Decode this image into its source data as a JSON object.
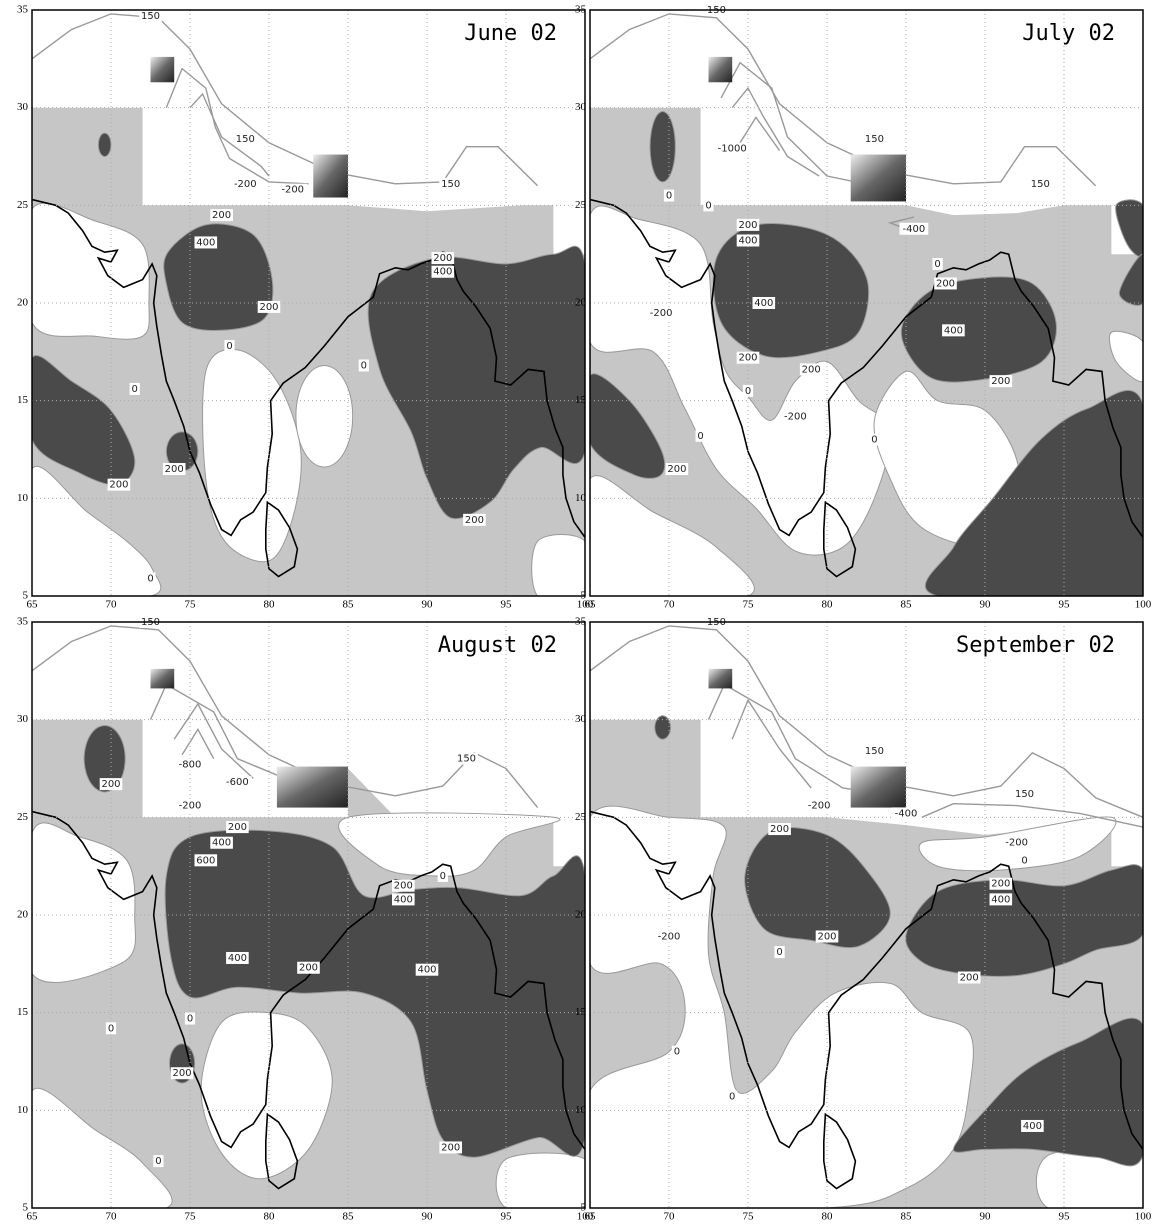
{
  "panels": [
    {
      "title": "June 02",
      "xticks": [
        65,
        70,
        75,
        80,
        85,
        90,
        95,
        100
      ],
      "yticks": [
        5,
        10,
        15,
        20,
        25,
        30,
        35
      ],
      "contour_labels": [
        "150",
        "150",
        "150",
        "-200",
        "-200",
        "200",
        "400",
        "200",
        "0",
        "0",
        "200",
        "400",
        "200",
        "200",
        "0",
        "200",
        "0"
      ]
    },
    {
      "title": "July 02",
      "xticks": [
        65,
        70,
        75,
        80,
        85,
        90,
        95,
        100
      ],
      "yticks": [
        5,
        10,
        15,
        20,
        25,
        30,
        35
      ],
      "contour_labels": [
        "150",
        "150",
        "150",
        "-1000",
        "0",
        "0",
        "-400",
        "200",
        "400",
        "400",
        "200",
        "200",
        "0",
        "200",
        "400",
        "200",
        "-200",
        "0",
        "-200",
        "0",
        "0",
        "200"
      ]
    },
    {
      "title": "August 02",
      "xticks": [
        65,
        70,
        75,
        80,
        85,
        90,
        95,
        100
      ],
      "yticks": [
        5,
        10,
        15,
        20,
        25,
        30,
        35
      ],
      "contour_labels": [
        "150",
        "150",
        "-800",
        "-600",
        "-200",
        "200",
        "200",
        "400",
        "600",
        "400",
        "200",
        "200",
        "400",
        "400",
        "0",
        "0",
        "0",
        "200",
        "0",
        "200"
      ]
    },
    {
      "title": "September 02",
      "xticks": [
        65,
        70,
        75,
        80,
        85,
        90,
        95,
        100
      ],
      "yticks": [
        5,
        10,
        15,
        20,
        25,
        30,
        35
      ],
      "contour_labels": [
        "150",
        "150",
        "150",
        "-200",
        "-400",
        "-200",
        "0",
        "200",
        "-200",
        "200",
        "0",
        "200",
        "400",
        "200",
        "0",
        "0",
        "400"
      ]
    }
  ]
}
